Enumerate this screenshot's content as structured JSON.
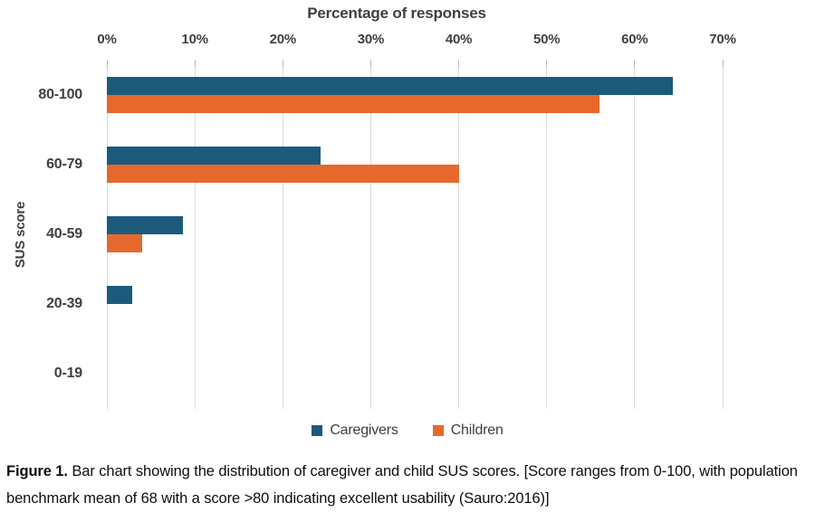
{
  "chart_data": {
    "type": "bar",
    "orientation": "horizontal",
    "title": "Percentage of responses",
    "ylabel": "SUS score",
    "categories": [
      "80-100",
      "60-79",
      "40-59",
      "20-39",
      "0-19"
    ],
    "series": [
      {
        "name": "Caregivers",
        "color": "#1C5A7B",
        "values": [
          64.3,
          24.3,
          8.6,
          2.9,
          0
        ]
      },
      {
        "name": "Children",
        "color": "#E7682D",
        "values": [
          56,
          40,
          4,
          0,
          0
        ]
      }
    ],
    "x_axis": {
      "min": 0,
      "max": 70,
      "tick_step": 10,
      "tick_labels": [
        "0%",
        "10%",
        "20%",
        "30%",
        "40%",
        "50%",
        "60%",
        "70%"
      ],
      "position": "top"
    },
    "grid": true,
    "legend_position": "bottom"
  },
  "palette": {
    "caregivers_blue": "#1C5A7B",
    "children_orange": "#E7682D",
    "chart_text": "#3F3F3F",
    "gridline": "#DCDCDC",
    "background": "#FFFFFF",
    "caption_text": "#0E0E0E"
  },
  "caption": {
    "label": "Figure 1.",
    "text": "Bar chart showing the distribution of caregiver and child SUS scores. [Score ranges from 0-100, with population benchmark mean of 68 with a score >80 indicating excellent usability (Sauro:2016)]"
  }
}
